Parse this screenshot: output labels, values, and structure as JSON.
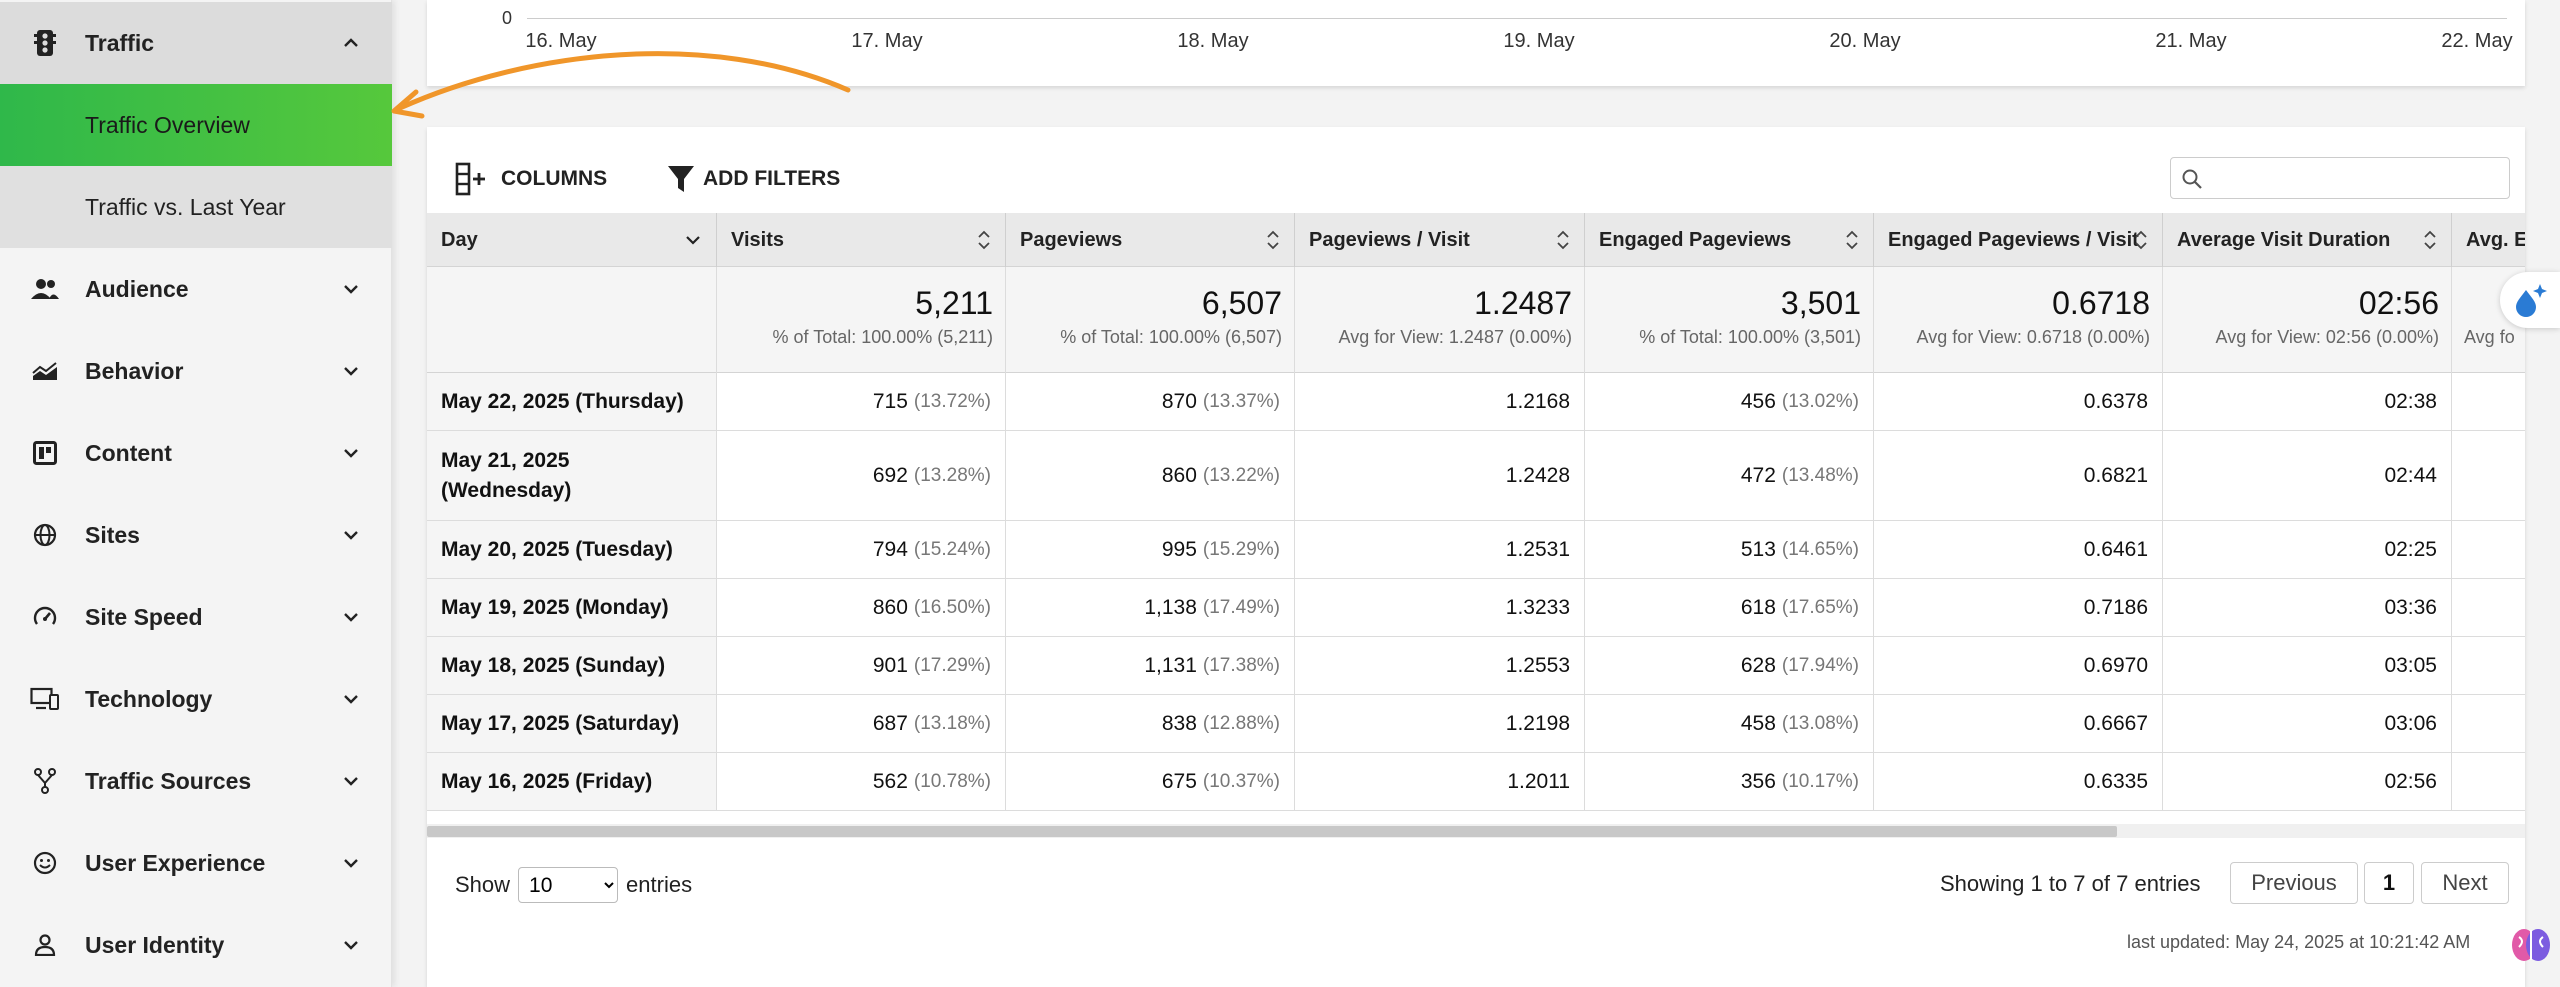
{
  "sidebar": {
    "items": [
      {
        "label": "Traffic",
        "icon": "traffic-icon",
        "expanded": true
      },
      {
        "label": "Traffic Overview",
        "active": true
      },
      {
        "label": "Traffic vs. Last Year"
      },
      {
        "label": "Audience",
        "icon": "people-icon"
      },
      {
        "label": "Behavior",
        "icon": "behavior-icon"
      },
      {
        "label": "Content",
        "icon": "content-icon"
      },
      {
        "label": "Sites",
        "icon": "globe-icon"
      },
      {
        "label": "Site Speed",
        "icon": "speedometer-icon"
      },
      {
        "label": "Technology",
        "icon": "devices-icon"
      },
      {
        "label": "Traffic Sources",
        "icon": "fork-icon"
      },
      {
        "label": "User Experience",
        "icon": "smiley-icon"
      },
      {
        "label": "User Identity",
        "icon": "user-icon"
      }
    ]
  },
  "chart": {
    "zero_label": "0",
    "ticks": [
      "16. May",
      "17. May",
      "18. May",
      "19. May",
      "20. May",
      "21. May",
      "22. May"
    ]
  },
  "toolbar": {
    "columns_label": "COLUMNS",
    "filters_label": "ADD FILTERS",
    "search_placeholder": ""
  },
  "table": {
    "headers": [
      "Day",
      "Visits",
      "Pageviews",
      "Pageviews / Visit",
      "Engaged Pageviews",
      "Engaged Pageviews / Visit",
      "Average Visit Duration",
      "Avg. E"
    ],
    "totals": [
      {
        "big": "",
        "small": ""
      },
      {
        "big": "5,211",
        "small": "% of Total: 100.00% (5,211)"
      },
      {
        "big": "6,507",
        "small": "% of Total: 100.00% (6,507)"
      },
      {
        "big": "1.2487",
        "small": "Avg for View: 1.2487 (0.00%)"
      },
      {
        "big": "3,501",
        "small": "% of Total: 100.00% (3,501)"
      },
      {
        "big": "0.6718",
        "small": "Avg for View: 0.6718 (0.00%)"
      },
      {
        "big": "02:56",
        "small": "Avg for View: 02:56 (0.00%)"
      },
      {
        "big": "",
        "small": "Avg fo"
      }
    ],
    "rows": [
      {
        "day": "May 22, 2025 (Thursday)",
        "visits": "715",
        "visits_pct": "(13.72%)",
        "pageviews": "870",
        "pageviews_pct": "(13.37%)",
        "ppv": "1.2168",
        "engaged": "456",
        "engaged_pct": "(13.02%)",
        "eppv": "0.6378",
        "duration": "02:38"
      },
      {
        "day": "May 21, 2025 (Wednesday)",
        "visits": "692",
        "visits_pct": "(13.28%)",
        "pageviews": "860",
        "pageviews_pct": "(13.22%)",
        "ppv": "1.2428",
        "engaged": "472",
        "engaged_pct": "(13.48%)",
        "eppv": "0.6821",
        "duration": "02:44"
      },
      {
        "day": "May 20, 2025 (Tuesday)",
        "visits": "794",
        "visits_pct": "(15.24%)",
        "pageviews": "995",
        "pageviews_pct": "(15.29%)",
        "ppv": "1.2531",
        "engaged": "513",
        "engaged_pct": "(14.65%)",
        "eppv": "0.6461",
        "duration": "02:25"
      },
      {
        "day": "May 19, 2025 (Monday)",
        "visits": "860",
        "visits_pct": "(16.50%)",
        "pageviews": "1,138",
        "pageviews_pct": "(17.49%)",
        "ppv": "1.3233",
        "engaged": "618",
        "engaged_pct": "(17.65%)",
        "eppv": "0.7186",
        "duration": "03:36"
      },
      {
        "day": "May 18, 2025 (Sunday)",
        "visits": "901",
        "visits_pct": "(17.29%)",
        "pageviews": "1,131",
        "pageviews_pct": "(17.38%)",
        "ppv": "1.2553",
        "engaged": "628",
        "engaged_pct": "(17.94%)",
        "eppv": "0.6970",
        "duration": "03:05"
      },
      {
        "day": "May 17, 2025 (Saturday)",
        "visits": "687",
        "visits_pct": "(13.18%)",
        "pageviews": "838",
        "pageviews_pct": "(12.88%)",
        "ppv": "1.2198",
        "engaged": "458",
        "engaged_pct": "(13.08%)",
        "eppv": "0.6667",
        "duration": "03:06"
      },
      {
        "day": "May 16, 2025 (Friday)",
        "visits": "562",
        "visits_pct": "(10.78%)",
        "pageviews": "675",
        "pageviews_pct": "(10.37%)",
        "ppv": "1.2011",
        "engaged": "356",
        "engaged_pct": "(10.17%)",
        "eppv": "0.6335",
        "duration": "02:56"
      }
    ]
  },
  "footer": {
    "show_label": "Show",
    "entries_value": "10",
    "entries_label": "entries",
    "info": "Showing 1 to 7 of 7 entries",
    "previous": "Previous",
    "page": "1",
    "next": "Next",
    "updated": "last updated: May 24, 2025 at 10:21:42 AM"
  },
  "colors": {
    "active_green": "#3dbb45",
    "arrow_orange": "#f0962a"
  }
}
